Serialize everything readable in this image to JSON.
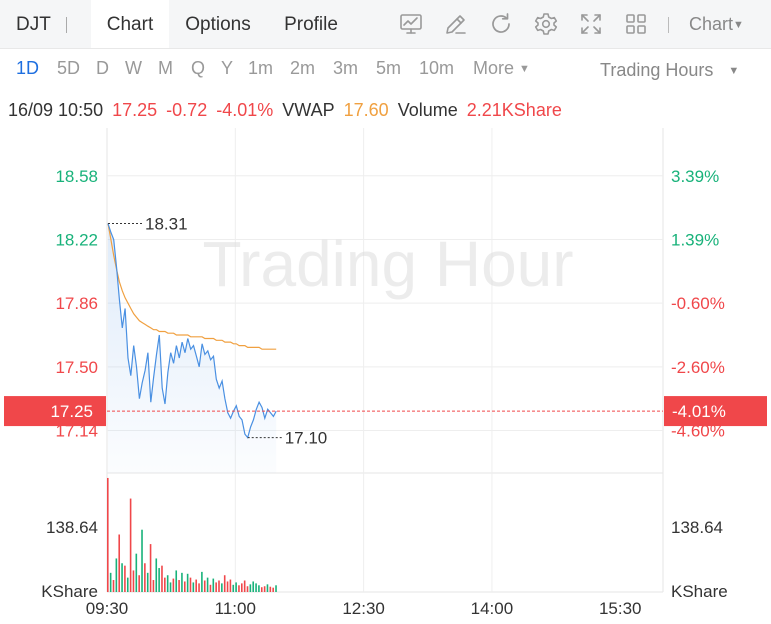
{
  "header": {
    "symbol": "DJT",
    "tabs": [
      {
        "label": "Chart",
        "active": true
      },
      {
        "label": "Options",
        "active": false
      },
      {
        "label": "Profile",
        "active": false
      }
    ],
    "tools": [
      "chart-trend-icon",
      "pen-icon",
      "refresh-icon",
      "gear-icon",
      "fullscreen-icon",
      "grid-icon"
    ],
    "chart_menu": "Chart"
  },
  "periods": {
    "items": [
      "1D",
      "5D",
      "D",
      "W",
      "M",
      "Q",
      "Y",
      "1m",
      "2m",
      "3m",
      "5m",
      "10m"
    ],
    "active": "1D",
    "more": "More",
    "trading_hours": "Trading Hours"
  },
  "info": {
    "datetime": "16/09 10:50",
    "price": "17.25",
    "change": "-0.72",
    "change_pct": "-4.01%",
    "vwap_label": "VWAP",
    "vwap": "17.60",
    "volume_label": "Volume",
    "volume": "2.21KShare"
  },
  "watermark": "Trading Hour",
  "colors": {
    "up": "#18b27a",
    "down": "#f0474a",
    "price_line": "#4a90e2",
    "vwap_line": "#f0a040",
    "accent": "#1e6fe0"
  },
  "chart_data": {
    "type": "line",
    "y_left_ticks": [
      "18.58",
      "18.22",
      "17.86",
      "17.50",
      "17.14"
    ],
    "y_right_ticks": [
      "3.39%",
      "1.39%",
      "-0.60%",
      "-2.60%",
      "-4.60%"
    ],
    "ylim": [
      16.9,
      18.85
    ],
    "current_price": "17.25",
    "current_pct": "-4.01%",
    "high_label": "18.31",
    "low_label": "17.10",
    "x_ticks": [
      "09:30",
      "11:00",
      "12:30",
      "14:00",
      "15:30"
    ],
    "volume_tick": "138.64",
    "volume_unit": "KShare",
    "volume_max": 240,
    "series": [
      {
        "name": "Price",
        "values": [
          18.31,
          18.26,
          18.22,
          18.06,
          17.88,
          17.72,
          17.83,
          17.55,
          17.45,
          17.62,
          17.5,
          17.32,
          17.41,
          17.48,
          17.58,
          17.3,
          17.44,
          17.57,
          17.68,
          17.38,
          17.29,
          17.47,
          17.58,
          17.52,
          17.62,
          17.55,
          17.64,
          17.58,
          17.66,
          17.6,
          17.62,
          17.56,
          17.5,
          17.63,
          17.57,
          17.59,
          17.54,
          17.56,
          17.43,
          17.38,
          17.42,
          17.32,
          17.24,
          17.21,
          17.25,
          17.28,
          17.22,
          17.2,
          17.12,
          17.1,
          17.16,
          17.2,
          17.26,
          17.3,
          17.27,
          17.21,
          17.26,
          17.24,
          17.22,
          17.25
        ]
      },
      {
        "name": "VWAP",
        "values": [
          18.31,
          18.22,
          18.13,
          18.05,
          17.98,
          17.93,
          17.89,
          17.86,
          17.83,
          17.8,
          17.78,
          17.76,
          17.75,
          17.74,
          17.73,
          17.72,
          17.71,
          17.71,
          17.7,
          17.7,
          17.7,
          17.69,
          17.69,
          17.69,
          17.68,
          17.68,
          17.68,
          17.68,
          17.68,
          17.67,
          17.67,
          17.67,
          17.67,
          17.67,
          17.66,
          17.66,
          17.66,
          17.66,
          17.65,
          17.65,
          17.65,
          17.64,
          17.64,
          17.64,
          17.63,
          17.63,
          17.62,
          17.62,
          17.62,
          17.61,
          17.61,
          17.61,
          17.61,
          17.61,
          17.6,
          17.6,
          17.6,
          17.6,
          17.6,
          17.6
        ]
      }
    ],
    "volume": [
      238,
      40,
      25,
      70,
      120,
      60,
      55,
      30,
      195,
      45,
      80,
      35,
      130,
      60,
      40,
      100,
      25,
      70,
      50,
      55,
      30,
      35,
      20,
      28,
      45,
      25,
      40,
      22,
      38,
      30,
      20,
      26,
      18,
      42,
      24,
      30,
      15,
      28,
      20,
      24,
      18,
      35,
      22,
      26,
      15,
      20,
      14,
      18,
      24,
      12,
      16,
      22,
      18,
      14,
      10,
      12,
      16,
      11,
      9,
      14
    ],
    "volume_up": [
      false,
      true,
      false,
      true,
      false,
      true,
      false,
      true,
      false,
      false,
      true,
      false,
      true,
      false,
      true,
      false,
      false,
      true,
      true,
      false,
      false,
      true,
      true,
      false,
      true,
      false,
      true,
      false,
      true,
      false,
      true,
      false,
      false,
      true,
      false,
      true,
      false,
      true,
      false,
      false,
      true,
      false,
      false,
      false,
      true,
      true,
      false,
      false,
      false,
      false,
      true,
      true,
      true,
      true,
      false,
      false,
      true,
      false,
      false,
      true
    ]
  }
}
